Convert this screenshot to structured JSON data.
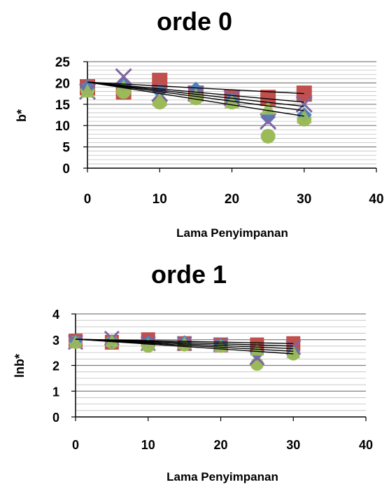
{
  "chart_data": [
    {
      "type": "scatter",
      "title": "orde 0",
      "xlabel": "Lama Penyimpanan",
      "ylabel": "b*",
      "xlim": [
        0,
        40
      ],
      "ylim": [
        0,
        25
      ],
      "xticks": [
        "0",
        "10",
        "20",
        "30",
        "40"
      ],
      "yticks": [
        "0",
        "5",
        "10",
        "15",
        "20",
        "25"
      ],
      "grid": "horizontal",
      "legend": "none",
      "series": [
        {
          "marker": "square",
          "color": "#c0504d",
          "x": [
            0,
            5,
            10,
            15,
            20,
            25,
            30
          ],
          "y": [
            19,
            18,
            20.5,
            17.5,
            16.5,
            16.5,
            17.5
          ]
        },
        {
          "marker": "circle",
          "color": "#9bbb59",
          "x": [
            0,
            5,
            10,
            15,
            20,
            25,
            30
          ],
          "y": [
            18.5,
            18,
            15.5,
            16.5,
            15.5,
            7.5,
            11.5
          ]
        },
        {
          "marker": "diamond",
          "color": "#4f81bd",
          "x": [
            0,
            5,
            10,
            15,
            20,
            25,
            30
          ],
          "y": [
            19,
            19.5,
            18,
            18.5,
            16,
            12,
            12.5
          ]
        },
        {
          "marker": "x",
          "color": "#8064a2",
          "x": [
            0,
            5,
            10,
            15,
            20,
            25,
            30
          ],
          "y": [
            18,
            21.5,
            17.5,
            17.5,
            16.5,
            11,
            15
          ]
        },
        {
          "marker": "triangle",
          "color": "#9bbb59",
          "x": [
            0,
            5,
            10,
            15,
            20,
            25,
            30
          ],
          "y": [
            18,
            19,
            16,
            17,
            15.5,
            14,
            12
          ]
        }
      ],
      "trendlines": [
        {
          "x": [
            0,
            30
          ],
          "y": [
            20.2,
            17.5
          ]
        },
        {
          "x": [
            0,
            30
          ],
          "y": [
            20.2,
            15.5
          ]
        },
        {
          "x": [
            0,
            30
          ],
          "y": [
            20.2,
            14.5
          ]
        },
        {
          "x": [
            0,
            30
          ],
          "y": [
            20.2,
            13.5
          ]
        },
        {
          "x": [
            0,
            30
          ],
          "y": [
            20.2,
            12.2
          ]
        }
      ]
    },
    {
      "type": "scatter",
      "title": "orde 1",
      "xlabel": "Lama Penyimpanan",
      "ylabel": "lnb*",
      "xlim": [
        0,
        40
      ],
      "ylim": [
        0,
        4
      ],
      "xticks": [
        "0",
        "10",
        "20",
        "30",
        "40"
      ],
      "yticks": [
        "0",
        "1",
        "2",
        "3",
        "4"
      ],
      "grid": "horizontal",
      "legend": "none",
      "series": [
        {
          "marker": "square",
          "color": "#c0504d",
          "x": [
            0,
            5,
            10,
            15,
            20,
            25,
            30
          ],
          "y": [
            2.95,
            2.9,
            3.0,
            2.85,
            2.8,
            2.8,
            2.85
          ]
        },
        {
          "marker": "circle",
          "color": "#9bbb59",
          "x": [
            0,
            5,
            10,
            15,
            20,
            25,
            30
          ],
          "y": [
            2.9,
            2.9,
            2.75,
            2.8,
            2.75,
            2.05,
            2.45
          ]
        },
        {
          "marker": "diamond",
          "color": "#4f81bd",
          "x": [
            0,
            5,
            10,
            15,
            20,
            25,
            30
          ],
          "y": [
            2.95,
            2.95,
            2.9,
            2.9,
            2.8,
            2.45,
            2.55
          ]
        },
        {
          "marker": "x",
          "color": "#8064a2",
          "x": [
            0,
            5,
            10,
            15,
            20,
            25,
            30
          ],
          "y": [
            2.9,
            3.05,
            2.85,
            2.85,
            2.8,
            2.3,
            2.7
          ]
        },
        {
          "marker": "triangle",
          "color": "#9bbb59",
          "x": [
            0,
            5,
            10,
            15,
            20,
            25,
            30
          ],
          "y": [
            2.9,
            2.95,
            2.8,
            2.85,
            2.75,
            2.6,
            2.5
          ]
        }
      ],
      "trendlines": [
        {
          "x": [
            0,
            30
          ],
          "y": [
            3.02,
            2.85
          ]
        },
        {
          "x": [
            0,
            30
          ],
          "y": [
            3.02,
            2.75
          ]
        },
        {
          "x": [
            0,
            30
          ],
          "y": [
            3.02,
            2.65
          ]
        },
        {
          "x": [
            0,
            30
          ],
          "y": [
            3.02,
            2.55
          ]
        },
        {
          "x": [
            0,
            30
          ],
          "y": [
            3.02,
            2.45
          ]
        }
      ]
    }
  ]
}
